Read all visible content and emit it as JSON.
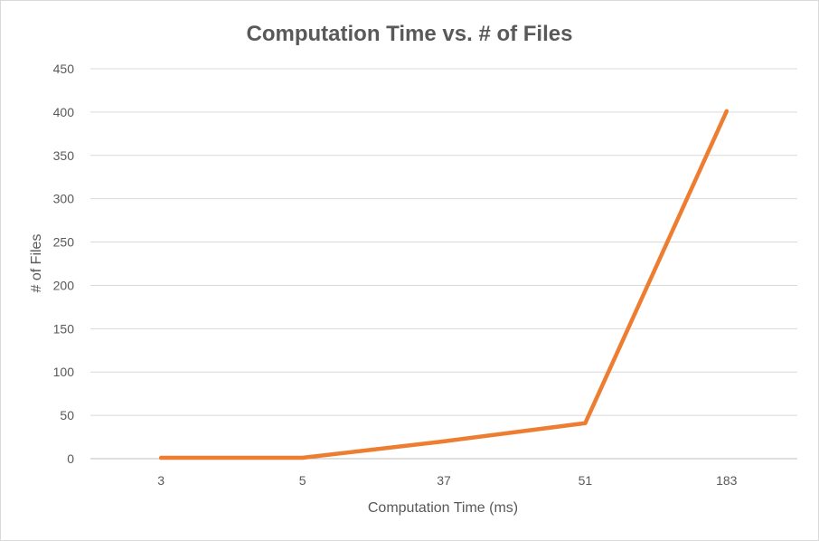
{
  "chart_data": {
    "type": "line",
    "title": "Computation Time vs. # of Files",
    "xlabel": "Computation Time (ms)",
    "ylabel": "# of Files",
    "categories": [
      "3",
      "5",
      "37",
      "51",
      "183"
    ],
    "series": [
      {
        "values": [
          1,
          1,
          20,
          41,
          401
        ],
        "color": "#ED7D31"
      }
    ],
    "ylim": [
      0,
      450
    ],
    "yticks": [
      0,
      50,
      100,
      150,
      200,
      250,
      300,
      350,
      400,
      450
    ],
    "grid": true,
    "legend": "none"
  }
}
